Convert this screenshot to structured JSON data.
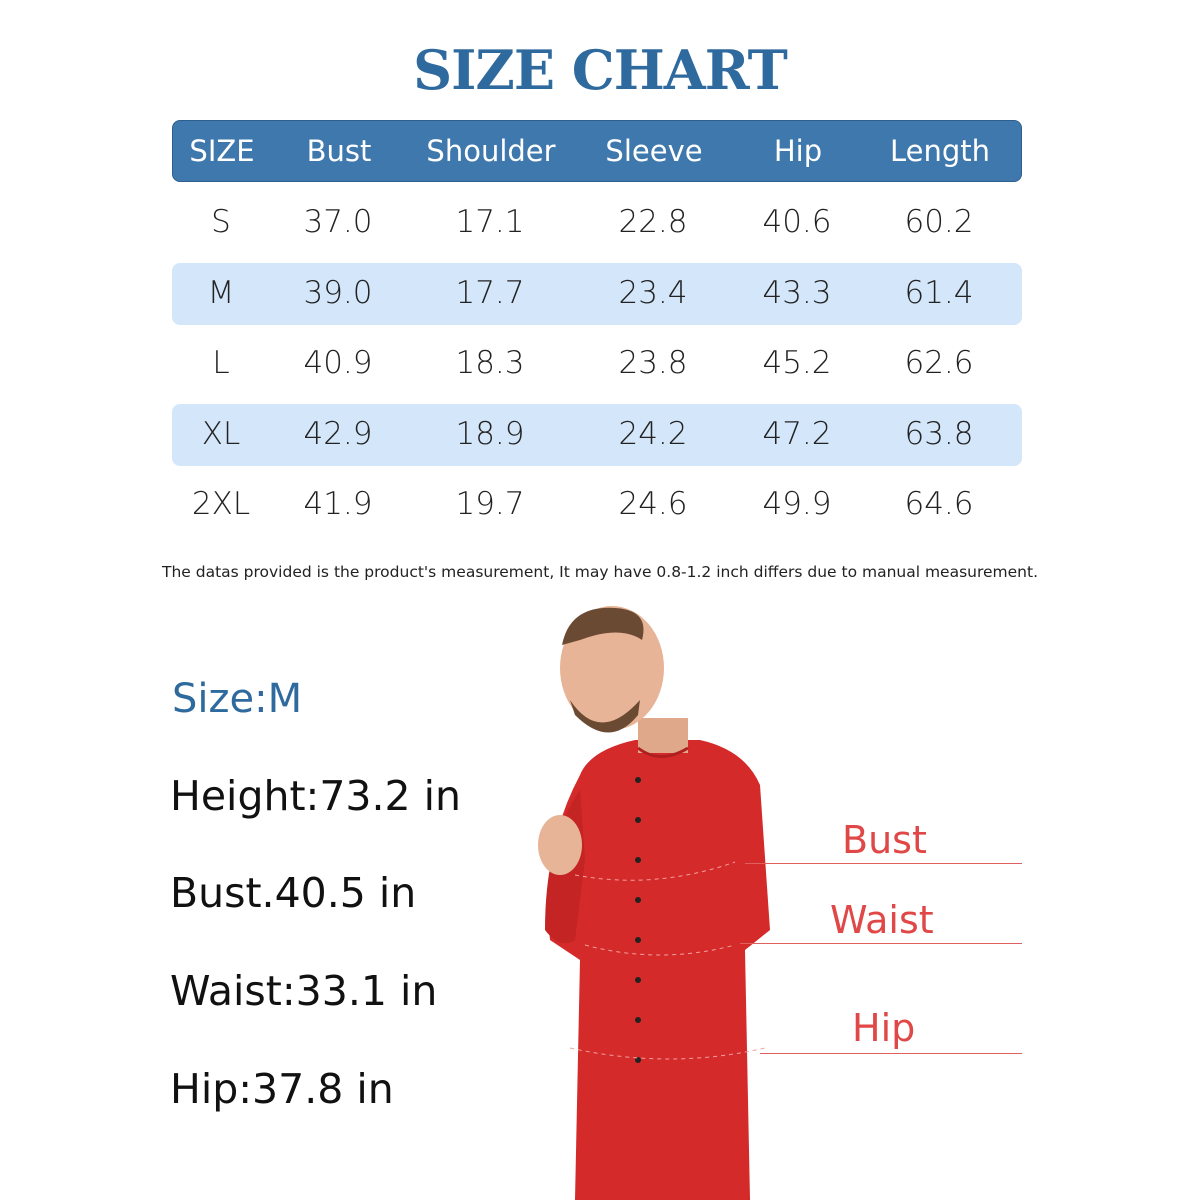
{
  "title": "SIZE CHART",
  "table": {
    "headers": [
      "SIZE",
      "Bust",
      "Shoulder",
      "Sleeve",
      "Hip",
      "Length"
    ],
    "rows": [
      [
        "S",
        "37.0",
        "17.1",
        "22.8",
        "40.6",
        "60.2"
      ],
      [
        "M",
        "39.0",
        "17.7",
        "23.4",
        "43.3",
        "61.4"
      ],
      [
        "L",
        "40.9",
        "18.3",
        "23.8",
        "45.2",
        "62.6"
      ],
      [
        "XL",
        "42.9",
        "18.9",
        "24.2",
        "47.2",
        "63.8"
      ],
      [
        "2XL",
        "41.9",
        "19.7",
        "24.6",
        "49.9",
        "64.6"
      ]
    ]
  },
  "note": "The datas provided is the product's measurement, It may have 0.8-1.2 inch differs due to manual measurement.",
  "model": {
    "size": "Size:M",
    "height": "Height:73.2 in",
    "bust": "Bust.40.5 in",
    "waist": "Waist:33.1 in",
    "hip": "Hip:37.8 in"
  },
  "labels": {
    "bust": "Bust",
    "waist": "Waist",
    "hip": "Hip"
  },
  "colors": {
    "title": "#2f6a9e",
    "header_bg": "#3f78ad",
    "band_bg": "#d3e6fa",
    "label_red": "#e04848",
    "garment": "#d42a2a"
  }
}
